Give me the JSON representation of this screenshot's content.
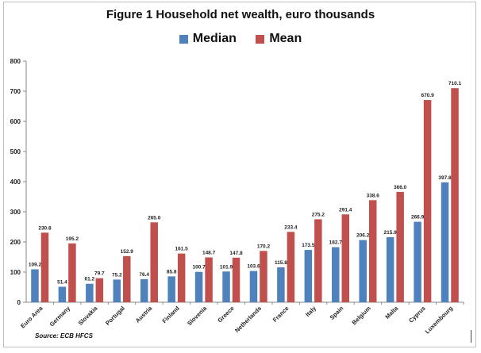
{
  "chart_data": {
    "type": "bar",
    "title": "Figure 1 Household net wealth, euro thousands",
    "categories": [
      "Euro Area",
      "Germany",
      "Slovakia",
      "Portugal",
      "Austria",
      "Finland",
      "Slovenia",
      "Greece",
      "Netherlands",
      "France",
      "Italy",
      "Spain",
      "Belgium",
      "Malta",
      "Cyprus",
      "Luxembourg"
    ],
    "series": [
      {
        "name": "Median",
        "color": "#4f81bd",
        "values": [
          109.2,
          51.4,
          61.2,
          75.2,
          76.4,
          85.8,
          100.7,
          101.9,
          103.6,
          115.8,
          173.5,
          182.7,
          206.2,
          215.9,
          266.9,
          397.8
        ]
      },
      {
        "name": "Mean",
        "color": "#c0504d",
        "values": [
          230.8,
          195.2,
          79.7,
          152.9,
          265.0,
          161.5,
          148.7,
          147.8,
          170.2,
          233.4,
          275.2,
          291.4,
          338.6,
          366.0,
          670.9,
          710.1
        ]
      }
    ],
    "ylim": [
      0,
      800
    ],
    "yticks": [
      0,
      100,
      200,
      300,
      400,
      500,
      600,
      700,
      800
    ],
    "xlabel": "",
    "ylabel": "",
    "grid": false,
    "legend": "top",
    "source": "Source: ECB HFCS"
  }
}
